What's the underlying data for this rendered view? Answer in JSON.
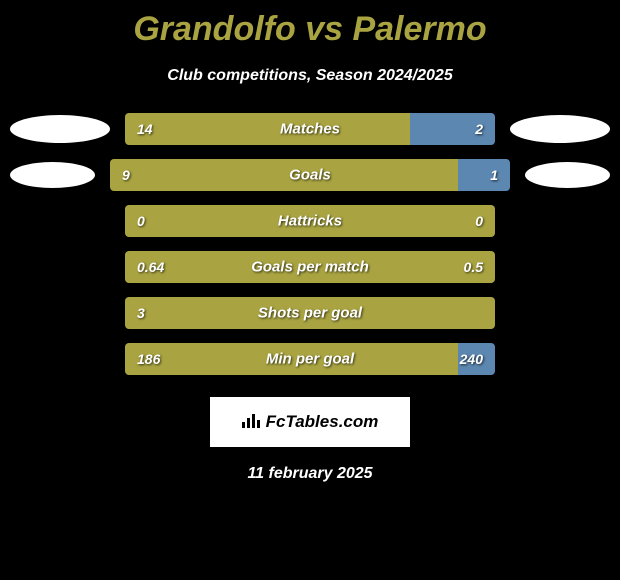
{
  "title": "Grandolfo vs Palermo",
  "subtitle": "Club competitions, Season 2024/2025",
  "date": "11 february 2025",
  "logo": "FcTables.com",
  "colors": {
    "background": "#000000",
    "title_color": "#a9a441",
    "text_color": "#ffffff",
    "left_bar": "#a9a441",
    "right_bar": "#5c87b0",
    "neutral_bar": "#a9a441",
    "avatar_bg": "#ffffff"
  },
  "typography": {
    "title_fontsize": 34,
    "subtitle_fontsize": 16,
    "bar_label_fontsize": 15,
    "bar_value_fontsize": 14,
    "font_style": "italic",
    "font_weight": 700
  },
  "stats": [
    {
      "label": "Matches",
      "left_value": "14",
      "right_value": "2",
      "left_raw": 14,
      "right_raw": 2,
      "left_pct": 77,
      "right_pct": 23,
      "left_color": "#a9a441",
      "right_color": "#5c87b0",
      "show_avatar": true,
      "avatar_left_small": false,
      "avatar_right_small": false
    },
    {
      "label": "Goals",
      "left_value": "9",
      "right_value": "1",
      "left_raw": 9,
      "right_raw": 1,
      "left_pct": 87,
      "right_pct": 13,
      "left_color": "#a9a441",
      "right_color": "#5c87b0",
      "show_avatar": true,
      "avatar_left_small": true,
      "avatar_right_small": true
    },
    {
      "label": "Hattricks",
      "left_value": "0",
      "right_value": "0",
      "left_raw": 0,
      "right_raw": 0,
      "left_pct": 100,
      "right_pct": 0,
      "left_color": "#a9a441",
      "right_color": "#a9a441",
      "show_avatar": false
    },
    {
      "label": "Goals per match",
      "left_value": "0.64",
      "right_value": "0.5",
      "left_raw": 0.64,
      "right_raw": 0.5,
      "left_pct": 100,
      "right_pct": 0,
      "left_color": "#a9a441",
      "right_color": "#a9a441",
      "show_avatar": false
    },
    {
      "label": "Shots per goal",
      "left_value": "3",
      "right_value": "",
      "left_raw": 3,
      "right_raw": 0,
      "left_pct": 100,
      "right_pct": 0,
      "left_color": "#a9a441",
      "right_color": "#a9a441",
      "show_avatar": false
    },
    {
      "label": "Min per goal",
      "left_value": "186",
      "right_value": "240",
      "left_raw": 186,
      "right_raw": 240,
      "left_pct": 90,
      "right_pct": 10,
      "left_color": "#a9a441",
      "right_color": "#5c87b0",
      "show_avatar": false
    }
  ]
}
